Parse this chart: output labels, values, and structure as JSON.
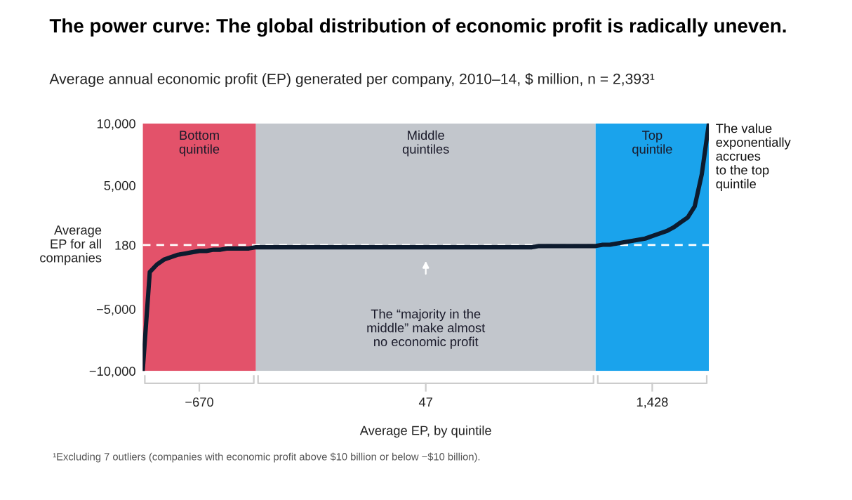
{
  "chart_data": {
    "type": "line",
    "title": "The power curve: The global distribution of economic profit is radically uneven.",
    "subtitle": "Average annual economic profit (EP) generated per company, 2010–14, $ million, n = 2,393¹",
    "xlabel": "Average EP, by quintile",
    "categories": [
      null,
      null,
      null,
      null,
      null,
      null,
      null,
      null,
      null,
      null,
      null,
      null,
      null,
      null,
      null,
      null,
      null,
      null,
      null,
      null,
      null,
      null,
      null,
      null,
      null,
      null,
      null,
      null,
      null,
      null,
      null,
      null,
      null,
      null,
      null,
      null,
      null,
      null,
      null,
      null,
      null,
      null,
      null,
      null,
      null,
      null,
      null,
      null,
      null,
      null,
      null,
      null,
      null,
      null,
      null,
      null,
      null,
      null,
      null,
      null,
      null,
      null,
      null,
      null,
      null,
      null,
      null,
      null,
      null,
      null,
      null,
      null,
      null,
      null,
      null,
      null,
      null,
      null,
      null,
      null,
      null
    ],
    "series": [
      {
        "color": "#0d1b2e",
        "values": [
          -10000,
          -2000,
          -1400,
          -1000,
          -800,
          -600,
          -500,
          -400,
          -300,
          -300,
          -200,
          -200,
          -100,
          -100,
          -100,
          -100,
          0,
          0,
          0,
          0,
          0,
          0,
          0,
          0,
          0,
          0,
          0,
          0,
          0,
          0,
          0,
          0,
          0,
          0,
          0,
          0,
          0,
          0,
          0,
          0,
          0,
          0,
          0,
          0,
          0,
          0,
          0,
          0,
          0,
          0,
          0,
          0,
          0,
          0,
          0,
          0,
          100,
          100,
          100,
          100,
          100,
          100,
          100,
          100,
          100,
          200,
          200,
          300,
          400,
          500,
          600,
          700,
          900,
          1100,
          1300,
          1600,
          2000,
          2400,
          3300,
          5900,
          10000
        ]
      }
    ],
    "ylim": [
      -10000,
      10000
    ],
    "yticks": [
      {
        "value": 10000,
        "label": "10,000"
      },
      {
        "value": 5000,
        "label": "5,000"
      },
      180,
      {
        "value": -5000,
        "label": "−5,000"
      },
      {
        "value": -10000,
        "label": "−10,000"
      }
    ],
    "tick_labels": "y",
    "grid": false,
    "legend": false,
    "marker": "none",
    "line_style": "solid",
    "ref_lines": [
      {
        "axis": "y",
        "value": 180,
        "color": "#ffffff",
        "line_style": "dashed"
      }
    ],
    "annotations": [
      "Average\nEP for all\ncompanies",
      "The value\nexponentially\naccrues\nto the top\nquintile",
      "The “majority in the\nmiddle” make almost\nno economic profit",
      "Bottom\nquintile",
      "Middle\nquintiles",
      "Top\nquintile",
      "−670",
      "47",
      "1,428",
      "¹Excluding 7 outliers (companies with economic profit above $10 billion or below −$10 billion)."
    ]
  }
}
